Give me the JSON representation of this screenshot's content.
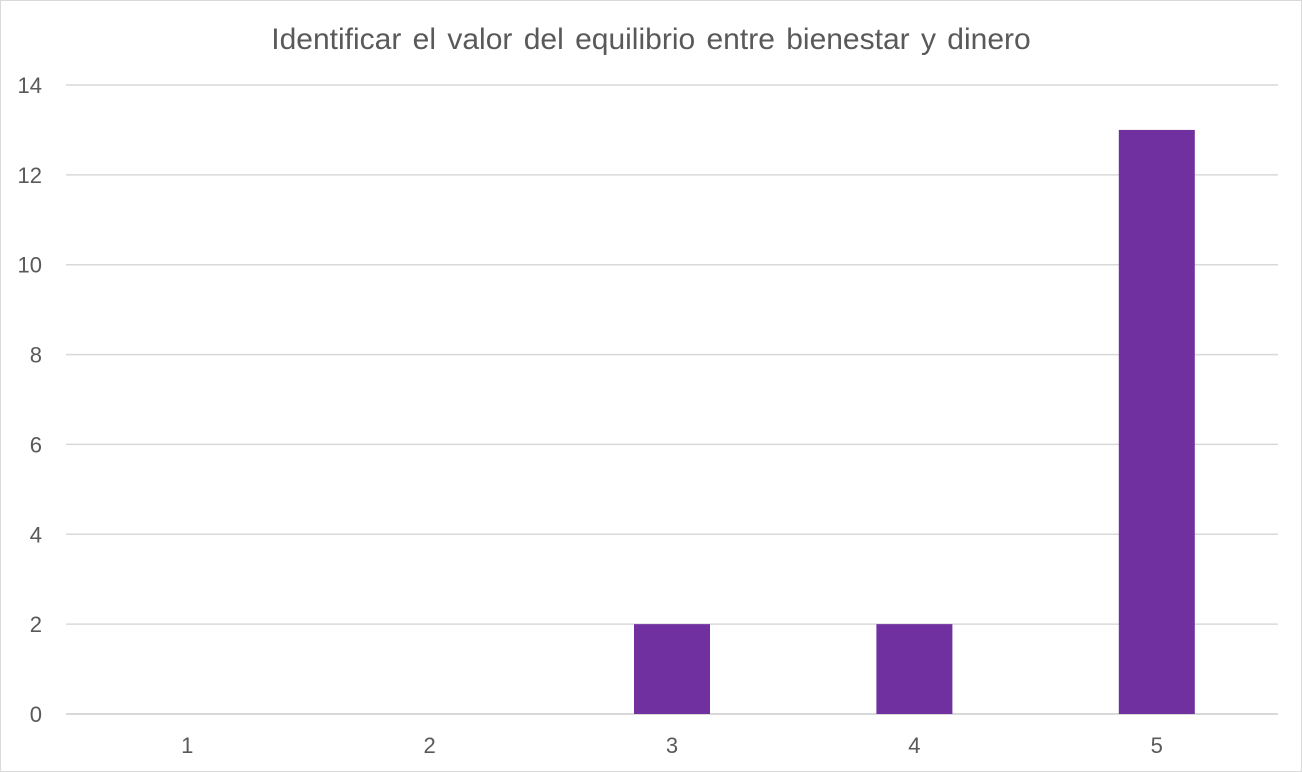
{
  "chart_data": {
    "type": "bar",
    "title": "Identificar el valor del equilibrio entre bienestar y dinero",
    "categories": [
      "1",
      "2",
      "3",
      "4",
      "5"
    ],
    "values": [
      0,
      0,
      2,
      2,
      13
    ],
    "xlabel": "",
    "ylabel": "",
    "ylim": [
      0,
      14
    ],
    "yticks": [
      "0",
      "2",
      "4",
      "6",
      "8",
      "10",
      "12",
      "14"
    ],
    "grid": true,
    "legend": "none",
    "bar_color": "#7030a0",
    "grid_color": "#d9d9d9",
    "text_color": "#595959"
  }
}
